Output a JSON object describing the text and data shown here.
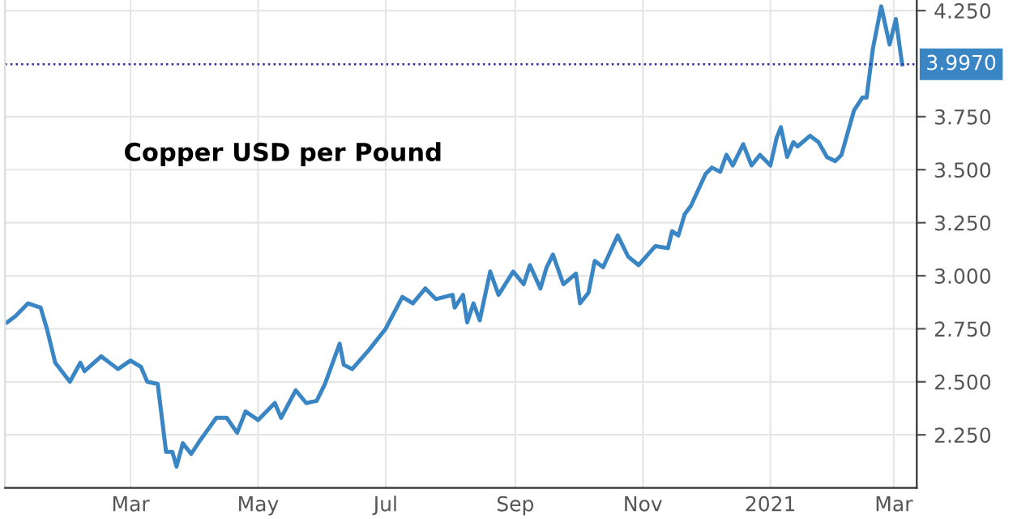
{
  "chart_data": {
    "type": "line",
    "title": "Copper USD per Pound",
    "x": [
      "2020-01-02",
      "2020-01-06",
      "2020-01-12",
      "2020-01-18",
      "2020-01-21",
      "2020-01-25",
      "2020-02-01",
      "2020-02-06",
      "2020-02-08",
      "2020-02-16",
      "2020-02-24",
      "2020-03-01",
      "2020-03-06",
      "2020-03-09",
      "2020-03-14",
      "2020-03-18",
      "2020-03-21",
      "2020-03-23",
      "2020-03-26",
      "2020-03-30",
      "2020-04-03",
      "2020-04-11",
      "2020-04-16",
      "2020-04-21",
      "2020-04-25",
      "2020-05-01",
      "2020-05-09",
      "2020-05-12",
      "2020-05-19",
      "2020-05-24",
      "2020-05-29",
      "2020-06-02",
      "2020-06-09",
      "2020-06-11",
      "2020-06-15",
      "2020-06-23",
      "2020-07-01",
      "2020-07-09",
      "2020-07-14",
      "2020-07-20",
      "2020-07-25",
      "2020-08-02",
      "2020-08-03",
      "2020-08-07",
      "2020-08-09",
      "2020-08-12",
      "2020-08-15",
      "2020-08-20",
      "2020-08-24",
      "2020-08-31",
      "2020-09-05",
      "2020-09-08",
      "2020-09-13",
      "2020-09-16",
      "2020-09-19",
      "2020-09-24",
      "2020-09-30",
      "2020-10-02",
      "2020-10-06",
      "2020-10-09",
      "2020-10-13",
      "2020-10-20",
      "2020-10-25",
      "2020-10-30",
      "2020-11-07",
      "2020-11-13",
      "2020-11-15",
      "2020-11-18",
      "2020-11-21",
      "2020-11-24",
      "2020-12-01",
      "2020-12-04",
      "2020-12-08",
      "2020-12-11",
      "2020-12-14",
      "2020-12-19",
      "2020-12-23",
      "2020-12-27",
      "2021-01-01",
      "2021-01-04",
      "2021-01-06",
      "2021-01-09",
      "2021-01-12",
      "2021-01-14",
      "2021-01-20",
      "2021-01-24",
      "2021-01-28",
      "2021-02-01",
      "2021-02-04",
      "2021-02-10",
      "2021-02-14",
      "2021-02-16",
      "2021-02-19",
      "2021-02-23",
      "2021-02-27",
      "2021-03-02",
      "2021-03-05"
    ],
    "series": [
      {
        "color": "#3a85c4",
        "values": [
          2.78,
          2.81,
          2.87,
          2.85,
          2.75,
          2.59,
          2.5,
          2.59,
          2.55,
          2.62,
          2.56,
          2.6,
          2.57,
          2.5,
          2.49,
          2.17,
          2.17,
          2.1,
          2.21,
          2.16,
          2.22,
          2.33,
          2.33,
          2.26,
          2.36,
          2.32,
          2.4,
          2.33,
          2.46,
          2.4,
          2.41,
          2.49,
          2.68,
          2.58,
          2.56,
          2.65,
          2.75,
          2.9,
          2.87,
          2.94,
          2.89,
          2.91,
          2.85,
          2.91,
          2.78,
          2.87,
          2.79,
          3.02,
          2.91,
          3.02,
          2.96,
          3.05,
          2.94,
          3.04,
          3.1,
          2.96,
          3.01,
          2.87,
          2.92,
          3.07,
          3.04,
          3.19,
          3.09,
          3.05,
          3.14,
          3.13,
          3.21,
          3.19,
          3.29,
          3.33,
          3.48,
          3.51,
          3.49,
          3.57,
          3.52,
          3.62,
          3.52,
          3.57,
          3.52,
          3.65,
          3.7,
          3.56,
          3.63,
          3.61,
          3.66,
          3.63,
          3.56,
          3.54,
          3.57,
          3.78,
          3.84,
          3.84,
          4.07,
          4.27,
          4.09,
          4.21,
          3.997
        ]
      }
    ],
    "xlim": [
      "2020-01-01",
      "2021-03-12"
    ],
    "xticks": [
      {
        "value": "2020-03-01",
        "label": "Mar"
      },
      {
        "value": "2020-05-01",
        "label": "May"
      },
      {
        "value": "2020-07-01",
        "label": "Jul"
      },
      {
        "value": "2020-09-01",
        "label": "Sep"
      },
      {
        "value": "2020-11-01",
        "label": "Nov"
      },
      {
        "value": "2021-01-01",
        "label": "2021"
      },
      {
        "value": "2021-03-01",
        "label": "Mar"
      }
    ],
    "ylim": [
      2.0,
      4.3
    ],
    "yticks": [
      {
        "value": 2.25,
        "label": "2.250"
      },
      {
        "value": 2.5,
        "label": "2.500"
      },
      {
        "value": 2.75,
        "label": "2.750"
      },
      {
        "value": 3.0,
        "label": "3.000"
      },
      {
        "value": 3.25,
        "label": "3.250"
      },
      {
        "value": 3.5,
        "label": "3.500"
      },
      {
        "value": 3.75,
        "label": "3.750"
      },
      {
        "value": 4.25,
        "label": "4.250"
      }
    ],
    "ref_lines": [
      {
        "axis": "y",
        "value": 3.997,
        "label": "3.9970",
        "color": "#2b2b9e",
        "line_style": "dotted"
      }
    ],
    "grid": true,
    "marker": "none",
    "line_style": "solid"
  }
}
